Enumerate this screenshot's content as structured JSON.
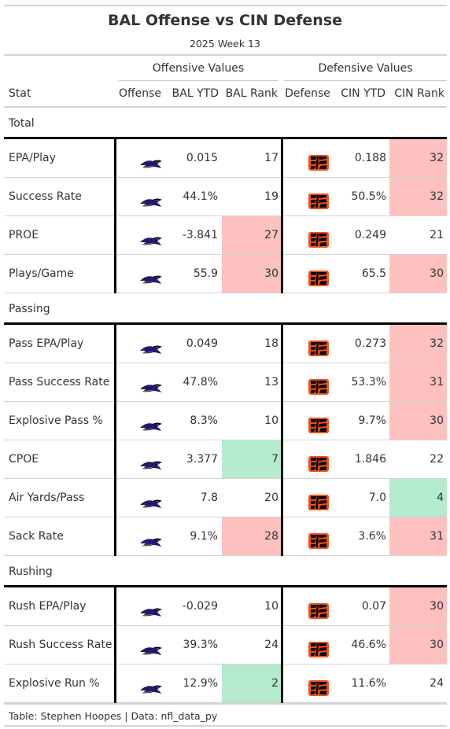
{
  "title": "BAL Offense vs CIN Defense",
  "subtitle": "2025 Week 13",
  "spanners": {
    "offense": "Offensive Values",
    "defense": "Defensive Values"
  },
  "columns": {
    "stat": "Stat",
    "offense": "Offense",
    "bal_ytd": "BAL YTD",
    "bal_rank": "BAL Rank",
    "defense": "Defense",
    "cin_ytd": "CIN YTD",
    "cin_rank": "CIN Rank"
  },
  "logos": {
    "offense": "ravens-logo-icon",
    "defense": "bengals-logo-icon"
  },
  "colors": {
    "bad": "#ffc0c0",
    "good": "#b3ebcc",
    "rule": "#000000"
  },
  "groups": [
    {
      "label": "Total",
      "rows": [
        {
          "stat": "EPA/Play",
          "bal_ytd": "0.015",
          "bal_rank": "17",
          "bal_hl": "",
          "cin_ytd": "0.188",
          "cin_rank": "32",
          "cin_hl": "bad"
        },
        {
          "stat": "Success Rate",
          "bal_ytd": "44.1%",
          "bal_rank": "19",
          "bal_hl": "",
          "cin_ytd": "50.5%",
          "cin_rank": "32",
          "cin_hl": "bad"
        },
        {
          "stat": "PROE",
          "bal_ytd": "-3.841",
          "bal_rank": "27",
          "bal_hl": "bad",
          "cin_ytd": "0.249",
          "cin_rank": "21",
          "cin_hl": ""
        },
        {
          "stat": "Plays/Game",
          "bal_ytd": "55.9",
          "bal_rank": "30",
          "bal_hl": "bad",
          "cin_ytd": "65.5",
          "cin_rank": "30",
          "cin_hl": "bad"
        }
      ]
    },
    {
      "label": "Passing",
      "rows": [
        {
          "stat": "Pass EPA/Play",
          "bal_ytd": "0.049",
          "bal_rank": "18",
          "bal_hl": "",
          "cin_ytd": "0.273",
          "cin_rank": "32",
          "cin_hl": "bad"
        },
        {
          "stat": "Pass Success Rate",
          "bal_ytd": "47.8%",
          "bal_rank": "13",
          "bal_hl": "",
          "cin_ytd": "53.3%",
          "cin_rank": "31",
          "cin_hl": "bad"
        },
        {
          "stat": "Explosive Pass %",
          "bal_ytd": "8.3%",
          "bal_rank": "10",
          "bal_hl": "",
          "cin_ytd": "9.7%",
          "cin_rank": "30",
          "cin_hl": "bad"
        },
        {
          "stat": "CPOE",
          "bal_ytd": "3.377",
          "bal_rank": "7",
          "bal_hl": "good",
          "cin_ytd": "1.846",
          "cin_rank": "22",
          "cin_hl": ""
        },
        {
          "stat": "Air Yards/Pass",
          "bal_ytd": "7.8",
          "bal_rank": "20",
          "bal_hl": "",
          "cin_ytd": "7.0",
          "cin_rank": "4",
          "cin_hl": "good"
        },
        {
          "stat": "Sack Rate",
          "bal_ytd": "9.1%",
          "bal_rank": "28",
          "bal_hl": "bad",
          "cin_ytd": "3.6%",
          "cin_rank": "31",
          "cin_hl": "bad"
        }
      ]
    },
    {
      "label": "Rushing",
      "rows": [
        {
          "stat": "Rush EPA/Play",
          "bal_ytd": "-0.029",
          "bal_rank": "10",
          "bal_hl": "",
          "cin_ytd": "0.07",
          "cin_rank": "30",
          "cin_hl": "bad"
        },
        {
          "stat": "Rush Success Rate",
          "bal_ytd": "39.3%",
          "bal_rank": "24",
          "bal_hl": "",
          "cin_ytd": "46.6%",
          "cin_rank": "30",
          "cin_hl": "bad"
        },
        {
          "stat": "Explosive Run %",
          "bal_ytd": "12.9%",
          "bal_rank": "2",
          "bal_hl": "good",
          "cin_ytd": "11.6%",
          "cin_rank": "24",
          "cin_hl": ""
        }
      ]
    }
  ],
  "footer": "Table: Stephen Hoopes | Data: nfl_data_py"
}
